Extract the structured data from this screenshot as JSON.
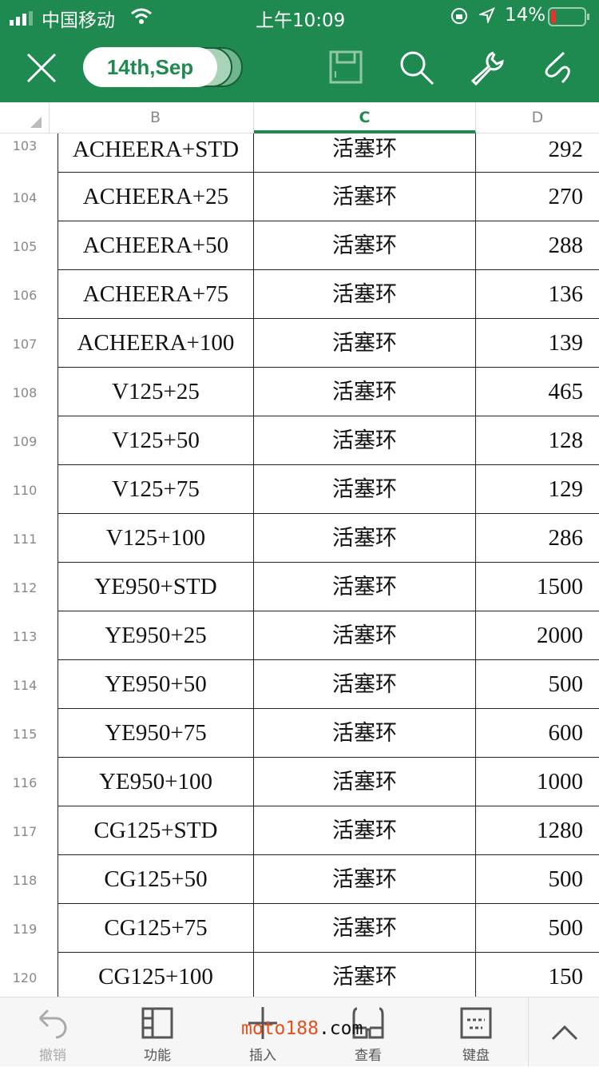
{
  "status": {
    "carrier": "中国移动",
    "time": "上午10:09",
    "battery": "14%",
    "battery_level": 0.14
  },
  "toolbar": {
    "file_name": "14th,Sep",
    "icons": [
      "close-icon",
      "save-icon",
      "search-icon",
      "wrench-icon",
      "pen-icon"
    ]
  },
  "columns": {
    "B": "B",
    "C": "C",
    "D": "D"
  },
  "rows": [
    {
      "n": "103",
      "b": "ACHEERA+STD",
      "c": "活塞环",
      "d": "292"
    },
    {
      "n": "104",
      "b": "ACHEERA+25",
      "c": "活塞环",
      "d": "270"
    },
    {
      "n": "105",
      "b": "ACHEERA+50",
      "c": "活塞环",
      "d": "288"
    },
    {
      "n": "106",
      "b": "ACHEERA+75",
      "c": "活塞环",
      "d": "136"
    },
    {
      "n": "107",
      "b": "ACHEERA+100",
      "c": "活塞环",
      "d": "139"
    },
    {
      "n": "108",
      "b": "V125+25",
      "c": "活塞环",
      "d": "465"
    },
    {
      "n": "109",
      "b": "V125+50",
      "c": "活塞环",
      "d": "128"
    },
    {
      "n": "110",
      "b": "V125+75",
      "c": "活塞环",
      "d": "129"
    },
    {
      "n": "111",
      "b": "V125+100",
      "c": "活塞环",
      "d": "286"
    },
    {
      "n": "112",
      "b": "YE950+STD",
      "c": "活塞环",
      "d": "1500"
    },
    {
      "n": "113",
      "b": "YE950+25",
      "c": "活塞环",
      "d": "2000"
    },
    {
      "n": "114",
      "b": "YE950+50",
      "c": "活塞环",
      "d": "500"
    },
    {
      "n": "115",
      "b": "YE950+75",
      "c": "活塞环",
      "d": "600"
    },
    {
      "n": "116",
      "b": "YE950+100",
      "c": "活塞环",
      "d": "1000"
    },
    {
      "n": "117",
      "b": "CG125+STD",
      "c": "活塞环",
      "d": "1280"
    },
    {
      "n": "118",
      "b": "CG125+50",
      "c": "活塞环",
      "d": "500"
    },
    {
      "n": "119",
      "b": "CG125+75",
      "c": "活塞环",
      "d": "500"
    },
    {
      "n": "120",
      "b": "CG125+100",
      "c": "活塞环",
      "d": "150"
    }
  ],
  "bottom": {
    "undo": "撤销",
    "function": "功能",
    "insert": "插入",
    "view": "查看",
    "keyboard": "键盘"
  },
  "watermark": {
    "part1": "moto188",
    "part2": ".com"
  },
  "colors": {
    "accent": "#1f8a50",
    "watermark": "#e8501c"
  }
}
